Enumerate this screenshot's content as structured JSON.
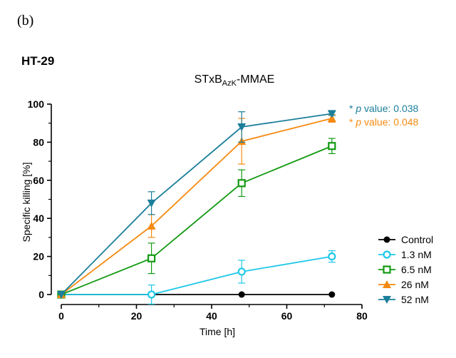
{
  "panel_label": "(b)",
  "chart_data": {
    "type": "line",
    "panel_title": "HT-29",
    "title": {
      "main": "STxB",
      "sub": "AzK",
      "suffix": "-MMAE"
    },
    "xlabel": "Time [h]",
    "ylabel": "Specific killing [%]",
    "xlim": [
      0,
      80
    ],
    "ylim": [
      0,
      100
    ],
    "xticks": [
      0,
      20,
      40,
      60,
      80
    ],
    "yticks": [
      0,
      20,
      40,
      60,
      80,
      100
    ],
    "grid": false,
    "legend_position": "right",
    "series": [
      {
        "name": "Control",
        "color": "#000000",
        "marker": "filled-circle",
        "x": [
          0,
          24,
          48,
          72
        ],
        "y": [
          0,
          0,
          0,
          0
        ],
        "err": [
          0,
          0,
          0,
          0
        ]
      },
      {
        "name": "1.3 nM",
        "color": "#1ec8e8",
        "marker": "open-circle",
        "x": [
          0,
          24,
          48,
          72
        ],
        "y": [
          0,
          0,
          12,
          20
        ],
        "err": [
          0,
          5,
          6,
          3
        ]
      },
      {
        "name": "6.5 nM",
        "color": "#139a13",
        "marker": "open-square",
        "x": [
          0,
          24,
          48,
          72
        ],
        "y": [
          0,
          19,
          58.5,
          78
        ],
        "err": [
          0,
          8,
          7,
          4
        ]
      },
      {
        "name": "26 nM",
        "color": "#f58a13",
        "marker": "triangle-up",
        "x": [
          0,
          24,
          48,
          72
        ],
        "y": [
          0,
          36,
          80.5,
          92.5
        ],
        "err": [
          0,
          6,
          12,
          2
        ]
      },
      {
        "name": "52 nM",
        "color": "#1b7f9a",
        "marker": "triangle-down",
        "x": [
          0,
          24,
          48,
          72
        ],
        "y": [
          0,
          48,
          88,
          95
        ],
        "err": [
          0,
          6,
          8,
          1
        ]
      }
    ],
    "annotations": [
      {
        "prefix": "* ",
        "italic": "p",
        "text": " value: 0.038",
        "color": "#1b7f9a"
      },
      {
        "prefix": "* ",
        "italic": "p",
        "text": " value: 0.048",
        "color": "#f58a13"
      }
    ]
  }
}
